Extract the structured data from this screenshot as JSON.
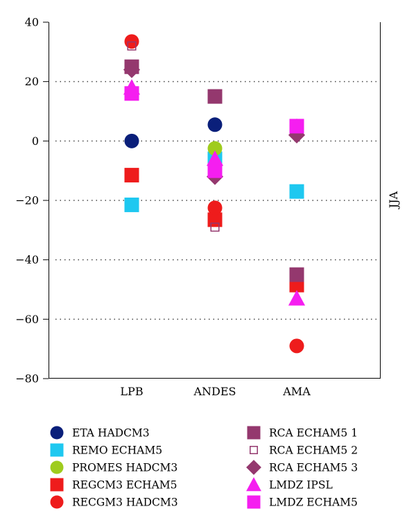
{
  "chart_data": {
    "type": "scatter",
    "title": "",
    "xlabel": "",
    "ylabel": "JJA",
    "categories": [
      "LPB",
      "ANDES",
      "AMA"
    ],
    "ylim": [
      -80,
      40
    ],
    "yticks": [
      -80,
      -60,
      -40,
      -20,
      0,
      20,
      40
    ],
    "grid": "horizontal dotted at 20, 0, -20, -40, -60",
    "legend_position": "bottom",
    "series": [
      {
        "name": "ETA HADCM3",
        "marker": "circle",
        "color": "#0a1f7a",
        "values": [
          0,
          5.5,
          5
        ]
      },
      {
        "name": "REMO ECHAM5",
        "marker": "square",
        "color": "#1ec8f0",
        "values": [
          -21.5,
          -6,
          -17
        ]
      },
      {
        "name": "PROMES HADCM3",
        "marker": "circle",
        "color": "#9fcc1e",
        "values": [
          null,
          -2.5,
          null
        ]
      },
      {
        "name": "REGCM3 ECHAM5",
        "marker": "square",
        "color": "#ee1c1c",
        "values": [
          -11.5,
          -26.5,
          -48.5
        ]
      },
      {
        "name": "RECGM3 HADCM3",
        "marker": "circle",
        "color": "#ee1c1c",
        "values": [
          33.5,
          -22.5,
          -69
        ]
      },
      {
        "name": "RCA ECHAM5 1",
        "marker": "square",
        "color": "#94386e",
        "values": [
          25,
          15,
          -45
        ]
      },
      {
        "name": "RCA ECHAM5 2",
        "marker": "square-open",
        "color": "#94386e",
        "values": [
          32,
          -29,
          null
        ]
      },
      {
        "name": "RCA ECHAM5 3",
        "marker": "diamond",
        "color": "#94386e",
        "values": [
          24,
          -12,
          2
        ]
      },
      {
        "name": "LMDZ IPSL",
        "marker": "triangle",
        "color": "#f51ef0",
        "values": [
          18,
          -6,
          -53
        ]
      },
      {
        "name": "LMDZ ECHAM5",
        "marker": "square",
        "color": "#f51ef0",
        "values": [
          16,
          -10,
          5
        ]
      }
    ]
  }
}
